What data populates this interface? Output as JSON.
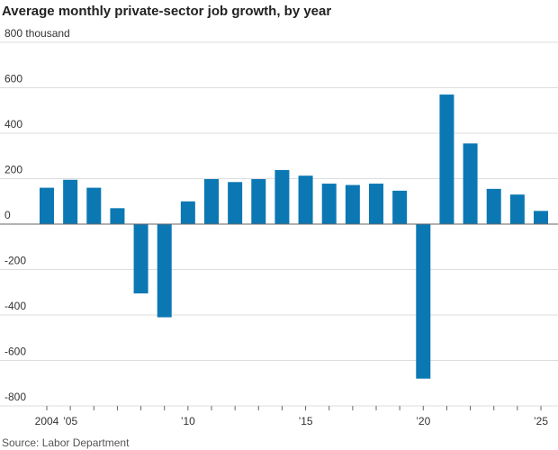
{
  "chart_data": {
    "type": "bar",
    "title": "Average monthly private-sector job growth, by year",
    "source": "Source: Labor Department",
    "categories": [
      "2004",
      "’05",
      null,
      null,
      null,
      null,
      "’10",
      null,
      null,
      null,
      null,
      "’15",
      null,
      null,
      null,
      null,
      "’20",
      null,
      null,
      null,
      null,
      "’25"
    ],
    "values": [
      160,
      195,
      160,
      70,
      -305,
      -410,
      100,
      198,
      185,
      198,
      238,
      213,
      178,
      172,
      178,
      147,
      -680,
      570,
      355,
      155,
      130,
      58
    ],
    "color": "#0b78b4",
    "ylim": [
      -800,
      800
    ],
    "yticks": [
      -800,
      -600,
      -400,
      -200,
      0,
      200,
      400,
      600,
      {
        "value": 800,
        "label": "800 thousand"
      }
    ],
    "grid": true
  }
}
